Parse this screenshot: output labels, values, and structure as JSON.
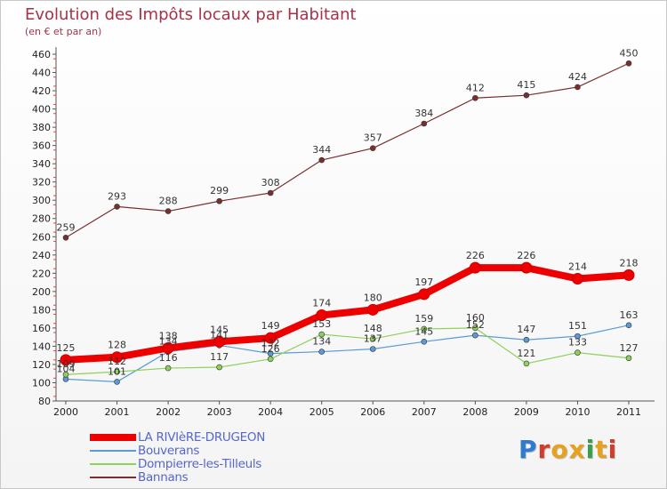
{
  "title": "Evolution des Impôts locaux par Habitant",
  "subtitle": "(en € et par an)",
  "brand": {
    "text": "Proxiti",
    "colors": [
      "#2e7bd0",
      "#d23c2a",
      "#e6a11e",
      "#e6a11e",
      "#3aa048",
      "#e6a11e",
      "#d23c2a"
    ]
  },
  "chart_data": {
    "type": "line",
    "title": "Evolution des Impôts locaux par Habitant",
    "subtitle": "(en € et par an)",
    "x": [
      "2000",
      "2001",
      "2002",
      "2003",
      "2004",
      "2005",
      "2006",
      "2007",
      "2008",
      "2009",
      "2010",
      "2011"
    ],
    "ylim": [
      80,
      460
    ],
    "yticks": [
      80,
      100,
      120,
      140,
      160,
      180,
      200,
      220,
      240,
      260,
      280,
      300,
      320,
      340,
      360,
      380,
      400,
      420,
      440,
      460
    ],
    "grid": false,
    "legend_position": "bottom-left",
    "series": [
      {
        "name": "LA RIVIèRE-DRUGEON",
        "color": "#ee0000",
        "thick": true,
        "labels": true,
        "values": [
          125,
          128,
          138,
          145,
          149,
          174,
          180,
          197,
          226,
          226,
          214,
          218
        ]
      },
      {
        "name": "Bouverans",
        "color": "#5a9bd5",
        "thick": false,
        "labels": true,
        "values": [
          104,
          101,
          134,
          141,
          132,
          134,
          137,
          145,
          152,
          147,
          151,
          163
        ]
      },
      {
        "name": "Dompierre-les-Tilleuls",
        "color": "#8fd05a",
        "thick": false,
        "labels": true,
        "values": [
          109,
          112,
          116,
          117,
          126,
          153,
          148,
          159,
          160,
          121,
          133,
          127
        ]
      },
      {
        "name": "Bannans",
        "color": "#7a2f2f",
        "thick": false,
        "labels": true,
        "values": [
          259,
          293,
          288,
          299,
          308,
          344,
          357,
          384,
          412,
          415,
          424,
          450
        ]
      }
    ]
  }
}
